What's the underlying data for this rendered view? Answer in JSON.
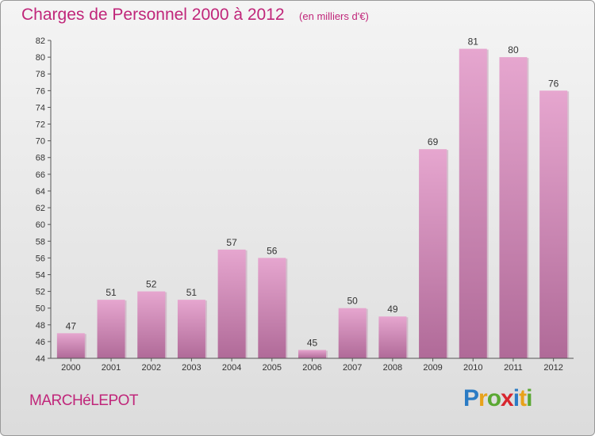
{
  "title": "Charges de Personnel 2000 à 2012",
  "subtitle": "(en milliers d'€)",
  "commune": "MARCHéLEPOT",
  "brand": {
    "letters": [
      {
        "ch": "P",
        "color": "#2a7bc4"
      },
      {
        "ch": "r",
        "color": "#e8a21a"
      },
      {
        "ch": "o",
        "color": "#5aa832"
      },
      {
        "ch": "x",
        "color": "#d8262e"
      },
      {
        "ch": "i",
        "color": "#2a7bc4"
      },
      {
        "ch": "t",
        "color": "#e8a21a"
      },
      {
        "ch": "i",
        "color": "#5aa832"
      }
    ]
  },
  "colors": {
    "bar_top": "#e6a6cf",
    "bar_bottom": "#b06a98",
    "accent": "#c0267a"
  },
  "chart_data": {
    "type": "bar",
    "categories": [
      "2000",
      "2001",
      "2002",
      "2003",
      "2004",
      "2005",
      "2006",
      "2007",
      "2008",
      "2009",
      "2010",
      "2011",
      "2012"
    ],
    "values": [
      47,
      51,
      52,
      51,
      57,
      56,
      45,
      50,
      49,
      69,
      81,
      80,
      76
    ],
    "title": "Charges de Personnel 2000 à 2012",
    "subtitle": "(en milliers d'€)",
    "xlabel": "",
    "ylabel": "",
    "ylim": [
      44,
      82
    ],
    "yticks": [
      44,
      46,
      48,
      50,
      52,
      54,
      56,
      58,
      60,
      62,
      64,
      66,
      68,
      70,
      72,
      74,
      76,
      78,
      80,
      82
    ],
    "grid": false,
    "legend": "none"
  }
}
